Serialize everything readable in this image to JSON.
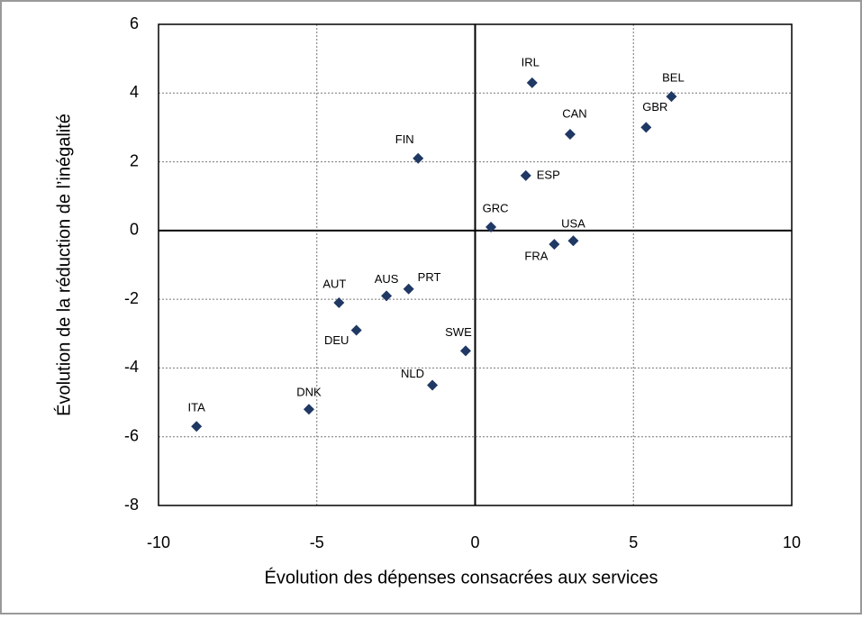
{
  "chart_data": {
    "type": "scatter",
    "xlabel": "Évolution des dépenses consacrées aux services",
    "ylabel": "Évolution de la réduction de l’inégalité",
    "labels": [
      "ITA",
      "DNK",
      "AUT",
      "DEU",
      "AUS",
      "PRT",
      "FIN",
      "NLD",
      "SWE",
      "GRC",
      "ESP",
      "IRL",
      "FRA",
      "CAN",
      "USA",
      "GBR",
      "BEL"
    ],
    "x": [
      -8.8,
      -5.25,
      -4.3,
      -3.75,
      -2.8,
      -2.1,
      -1.8,
      -1.35,
      -0.3,
      0.5,
      1.6,
      1.8,
      2.5,
      3.0,
      3.1,
      5.4,
      6.2
    ],
    "values": [
      -5.7,
      -5.2,
      -2.1,
      -2.9,
      -1.9,
      -1.7,
      2.1,
      -4.5,
      -3.5,
      0.1,
      1.6,
      4.3,
      -0.4,
      2.8,
      -0.3,
      3.0,
      3.9
    ],
    "color": "#1f3864",
    "xlim": [
      -10,
      10
    ],
    "xticks": [
      -10,
      -5,
      0,
      5,
      10
    ],
    "ylim": [
      -8,
      6
    ],
    "yticks": [
      -8,
      -6,
      -4,
      -2,
      0,
      2,
      4,
      6
    ],
    "grid": true
  }
}
